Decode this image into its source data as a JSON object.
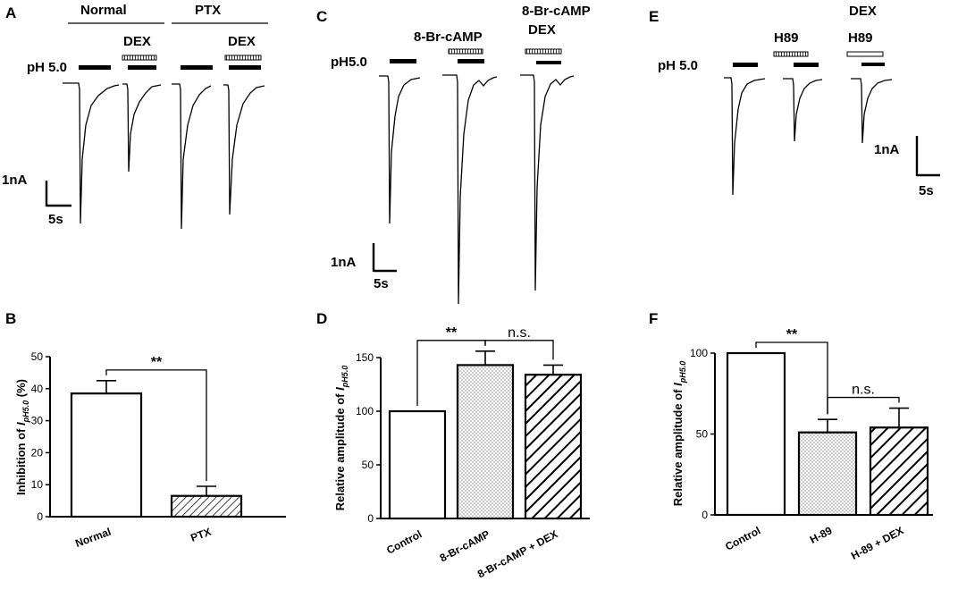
{
  "panels": {
    "A": {
      "label": "A",
      "headers": [
        "Normal",
        "PTX"
      ],
      "drug_labels": [
        "DEX",
        "DEX"
      ],
      "ph_label": "pH 5.0",
      "scale_y": "1nA",
      "scale_x": "5s"
    },
    "C": {
      "label": "C",
      "ph_label": "pH5.0",
      "drug_labels": [
        "8-Br-cAMP",
        "8-Br-cAMP",
        "DEX"
      ],
      "scale_y": "1nA",
      "scale_x": "5s"
    },
    "E": {
      "label": "E",
      "ph_label": "pH 5.0",
      "drug_labels": [
        "H89",
        "DEX",
        "H89"
      ],
      "scale_y": "1nA",
      "scale_x": "5s"
    },
    "B": {
      "label": "B"
    },
    "D": {
      "label": "D"
    },
    "F": {
      "label": "F"
    }
  },
  "chart_data": [
    {
      "panel": "B",
      "type": "bar",
      "categories": [
        "Normal",
        "PTX"
      ],
      "values": [
        38.5,
        6.5
      ],
      "errors": [
        4.0,
        3.0
      ],
      "patterns": [
        "none",
        "diagonal-lines"
      ],
      "ylabel_main": "Inhibition of ",
      "ylabel_sym": "I",
      "ylabel_sub": "pH5.0",
      "ylabel_end": " (%)",
      "ylim": [
        0,
        50
      ],
      "yticks": [
        "0",
        "10",
        "20",
        "30",
        "40",
        "50"
      ],
      "annotations": [
        {
          "text": "**",
          "between": [
            0,
            1
          ]
        }
      ]
    },
    {
      "panel": "D",
      "type": "bar",
      "categories": [
        "Control",
        "8-Br-cAMP",
        "8-Br-cAMP + DEX"
      ],
      "values": [
        100,
        143,
        134
      ],
      "errors": [
        0,
        13,
        9
      ],
      "patterns": [
        "none",
        "dots",
        "thick-diagonal"
      ],
      "ylabel_main": "Relative amplitude of ",
      "ylabel_sym": "I",
      "ylabel_sub": "pH5.0",
      "ylabel_end": "",
      "ylim": [
        0,
        150
      ],
      "yticks": [
        "0",
        "50",
        "100",
        "150"
      ],
      "annotations": [
        {
          "text": "**",
          "between": [
            0,
            1
          ]
        },
        {
          "text": "n.s.",
          "between": [
            1,
            2
          ]
        }
      ]
    },
    {
      "panel": "F",
      "type": "bar",
      "categories": [
        "Control",
        "H-89",
        "H-89 + DEX"
      ],
      "values": [
        100,
        51,
        54
      ],
      "errors": [
        0,
        8,
        12
      ],
      "patterns": [
        "none",
        "dots",
        "thick-diagonal"
      ],
      "ylabel_main": "Relative amplitude of ",
      "ylabel_sym": "I",
      "ylabel_sub": "pH5.0",
      "ylabel_end": "",
      "ylim": [
        0,
        100
      ],
      "yticks": [
        "0",
        "50",
        "100"
      ],
      "annotations": [
        {
          "text": "**",
          "between": [
            0,
            1
          ]
        },
        {
          "text": "n.s.",
          "between": [
            1,
            2
          ]
        }
      ]
    }
  ]
}
